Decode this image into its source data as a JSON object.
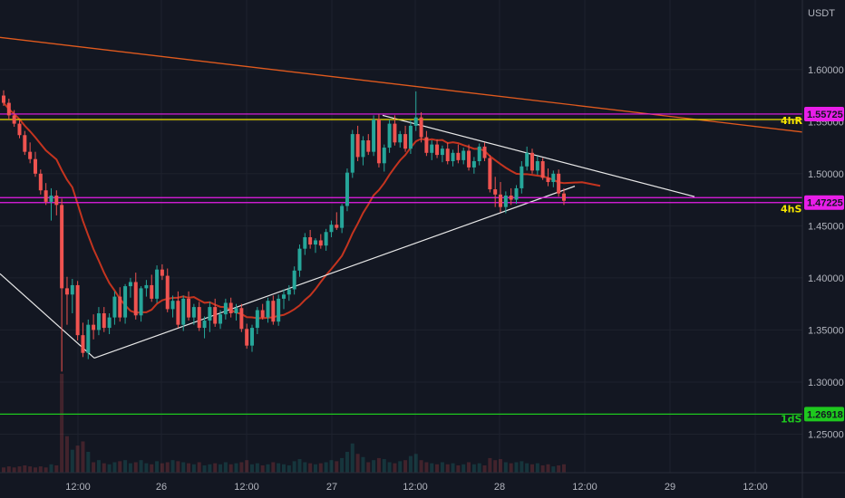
{
  "currency_label": "USDT",
  "colors": {
    "bg": "#131722",
    "grid": "#1e222d",
    "up": "#26a69a",
    "down": "#ef5350",
    "ma": "#c4341f",
    "trendline": "#e05a1e",
    "pattern": "#e8e8e8",
    "magenta": "#e91ee9",
    "yellow": "#f5e400",
    "green": "#1ec81e"
  },
  "chart_data": {
    "type": "candlestick",
    "ylim": [
      1.226,
      1.659
    ],
    "y_ticks": [
      "1.60000",
      "1.55000",
      "1.50000",
      "1.45000",
      "1.40000",
      "1.35000",
      "1.30000",
      "1.25000"
    ],
    "x_ticks": [
      "12:00",
      "26",
      "12:00",
      "27",
      "12:00",
      "28",
      "12:00",
      "29",
      "12:00"
    ],
    "price_levels": [
      {
        "label": "1.55725",
        "value": 1.55725,
        "color": "#e91ee9",
        "side_tag": "4hR"
      },
      {
        "label": "",
        "value": 1.552,
        "color": "#f5e400"
      },
      {
        "label": "1.47225",
        "value": 1.47225,
        "color": "#e91ee9",
        "side_tag": "4hS"
      },
      {
        "label": "",
        "value": 1.477,
        "color": "#e91ee9"
      },
      {
        "label": "1.26918",
        "value": 1.26918,
        "color": "#1ec81e",
        "side_tag": "1dS"
      }
    ],
    "candles": [
      [
        1.575,
        1.58,
        1.565,
        1.568
      ],
      [
        1.568,
        1.572,
        1.552,
        1.556
      ],
      [
        1.556,
        1.561,
        1.545,
        1.548
      ],
      [
        1.548,
        1.552,
        1.534,
        1.537
      ],
      [
        1.537,
        1.541,
        1.518,
        1.521
      ],
      [
        1.521,
        1.53,
        1.51,
        1.514
      ],
      [
        1.514,
        1.521,
        1.497,
        1.5
      ],
      [
        1.5,
        1.504,
        1.48,
        1.484
      ],
      [
        1.484,
        1.491,
        1.47,
        1.473
      ],
      [
        1.473,
        1.486,
        1.455,
        1.479
      ],
      [
        1.479,
        1.484,
        1.46,
        1.47
      ],
      [
        1.47,
        1.476,
        1.31,
        1.39
      ],
      [
        1.39,
        1.401,
        1.355,
        1.384
      ],
      [
        1.384,
        1.399,
        1.366,
        1.393
      ],
      [
        1.393,
        1.397,
        1.34,
        1.345
      ],
      [
        1.345,
        1.357,
        1.324,
        1.328
      ],
      [
        1.328,
        1.36,
        1.322,
        1.355
      ],
      [
        1.355,
        1.365,
        1.341,
        1.35
      ],
      [
        1.35,
        1.372,
        1.345,
        1.366
      ],
      [
        1.366,
        1.372,
        1.348,
        1.352
      ],
      [
        1.352,
        1.366,
        1.346,
        1.362
      ],
      [
        1.362,
        1.387,
        1.355,
        1.382
      ],
      [
        1.382,
        1.391,
        1.358,
        1.362
      ],
      [
        1.362,
        1.394,
        1.356,
        1.392
      ],
      [
        1.392,
        1.4,
        1.381,
        1.396
      ],
      [
        1.396,
        1.405,
        1.36,
        1.364
      ],
      [
        1.364,
        1.392,
        1.358,
        1.39
      ],
      [
        1.39,
        1.398,
        1.382,
        1.393
      ],
      [
        1.393,
        1.403,
        1.377,
        1.38
      ],
      [
        1.38,
        1.412,
        1.376,
        1.408
      ],
      [
        1.408,
        1.413,
        1.398,
        1.402
      ],
      [
        1.402,
        1.409,
        1.367,
        1.37
      ],
      [
        1.37,
        1.383,
        1.362,
        1.378
      ],
      [
        1.378,
        1.387,
        1.352,
        1.355
      ],
      [
        1.355,
        1.383,
        1.349,
        1.38
      ],
      [
        1.38,
        1.387,
        1.359,
        1.362
      ],
      [
        1.362,
        1.375,
        1.355,
        1.372
      ],
      [
        1.372,
        1.377,
        1.349,
        1.352
      ],
      [
        1.352,
        1.363,
        1.342,
        1.359
      ],
      [
        1.359,
        1.377,
        1.348,
        1.372
      ],
      [
        1.372,
        1.38,
        1.353,
        1.356
      ],
      [
        1.356,
        1.369,
        1.351,
        1.365
      ],
      [
        1.365,
        1.38,
        1.36,
        1.376
      ],
      [
        1.376,
        1.381,
        1.362,
        1.366
      ],
      [
        1.366,
        1.375,
        1.359,
        1.371
      ],
      [
        1.371,
        1.375,
        1.348,
        1.351
      ],
      [
        1.351,
        1.356,
        1.332,
        1.335
      ],
      [
        1.335,
        1.355,
        1.329,
        1.352
      ],
      [
        1.352,
        1.372,
        1.346,
        1.369
      ],
      [
        1.369,
        1.375,
        1.36,
        1.362
      ],
      [
        1.362,
        1.381,
        1.357,
        1.378
      ],
      [
        1.378,
        1.383,
        1.355,
        1.358
      ],
      [
        1.358,
        1.384,
        1.354,
        1.38
      ],
      [
        1.38,
        1.389,
        1.37,
        1.384
      ],
      [
        1.384,
        1.393,
        1.378,
        1.389
      ],
      [
        1.389,
        1.411,
        1.384,
        1.407
      ],
      [
        1.407,
        1.432,
        1.401,
        1.428
      ],
      [
        1.428,
        1.443,
        1.422,
        1.439
      ],
      [
        1.439,
        1.446,
        1.428,
        1.432
      ],
      [
        1.432,
        1.438,
        1.424,
        1.436
      ],
      [
        1.436,
        1.442,
        1.428,
        1.431
      ],
      [
        1.431,
        1.447,
        1.426,
        1.444
      ],
      [
        1.444,
        1.455,
        1.439,
        1.451
      ],
      [
        1.451,
        1.463,
        1.446,
        1.448
      ],
      [
        1.448,
        1.471,
        1.443,
        1.469
      ],
      [
        1.469,
        1.505,
        1.464,
        1.501
      ],
      [
        1.501,
        1.542,
        1.496,
        1.538
      ],
      [
        1.538,
        1.546,
        1.512,
        1.516
      ],
      [
        1.516,
        1.536,
        1.508,
        1.532
      ],
      [
        1.532,
        1.538,
        1.518,
        1.521
      ],
      [
        1.521,
        1.556,
        1.517,
        1.552
      ],
      [
        1.552,
        1.557,
        1.506,
        1.51
      ],
      [
        1.51,
        1.528,
        1.502,
        1.525
      ],
      [
        1.525,
        1.552,
        1.52,
        1.548
      ],
      [
        1.548,
        1.556,
        1.527,
        1.53
      ],
      [
        1.53,
        1.541,
        1.525,
        1.538
      ],
      [
        1.538,
        1.546,
        1.521,
        1.524
      ],
      [
        1.524,
        1.551,
        1.519,
        1.546
      ],
      [
        1.546,
        1.579,
        1.541,
        1.554
      ],
      [
        1.554,
        1.559,
        1.53,
        1.535
      ],
      [
        1.535,
        1.541,
        1.517,
        1.52
      ],
      [
        1.52,
        1.532,
        1.513,
        1.528
      ],
      [
        1.528,
        1.533,
        1.515,
        1.518
      ],
      [
        1.518,
        1.527,
        1.511,
        1.524
      ],
      [
        1.524,
        1.53,
        1.509,
        1.512
      ],
      [
        1.512,
        1.523,
        1.507,
        1.52
      ],
      [
        1.52,
        1.528,
        1.51,
        1.513
      ],
      [
        1.513,
        1.525,
        1.509,
        1.522
      ],
      [
        1.522,
        1.528,
        1.503,
        1.506
      ],
      [
        1.506,
        1.516,
        1.5,
        1.512
      ],
      [
        1.512,
        1.529,
        1.508,
        1.526
      ],
      [
        1.526,
        1.53,
        1.512,
        1.515
      ],
      [
        1.515,
        1.518,
        1.482,
        1.485
      ],
      [
        1.485,
        1.497,
        1.468,
        1.48
      ],
      [
        1.48,
        1.492,
        1.463,
        1.468
      ],
      [
        1.468,
        1.483,
        1.462,
        1.479
      ],
      [
        1.479,
        1.486,
        1.47,
        1.475
      ],
      [
        1.475,
        1.489,
        1.471,
        1.486
      ],
      [
        1.486,
        1.512,
        1.481,
        1.507
      ],
      [
        1.507,
        1.526,
        1.503,
        1.52
      ],
      [
        1.52,
        1.524,
        1.5,
        1.503
      ],
      [
        1.503,
        1.517,
        1.499,
        1.512
      ],
      [
        1.512,
        1.515,
        1.494,
        1.496
      ],
      [
        1.496,
        1.505,
        1.488,
        1.492
      ],
      [
        1.492,
        1.503,
        1.487,
        1.5
      ],
      [
        1.5,
        1.504,
        1.478,
        1.481
      ],
      [
        1.481,
        1.486,
        1.47,
        1.474
      ]
    ],
    "volume": [
      0.05,
      0.06,
      0.05,
      0.06,
      0.07,
      0.06,
      0.05,
      0.06,
      0.05,
      0.08,
      0.07,
      0.95,
      0.35,
      0.22,
      0.26,
      0.3,
      0.2,
      0.1,
      0.12,
      0.09,
      0.08,
      0.1,
      0.11,
      0.12,
      0.09,
      0.1,
      0.12,
      0.09,
      0.08,
      0.11,
      0.09,
      0.1,
      0.12,
      0.11,
      0.1,
      0.09,
      0.08,
      0.1,
      0.07,
      0.08,
      0.09,
      0.08,
      0.1,
      0.08,
      0.09,
      0.1,
      0.12,
      0.08,
      0.09,
      0.07,
      0.08,
      0.1,
      0.09,
      0.08,
      0.07,
      0.11,
      0.13,
      0.1,
      0.09,
      0.08,
      0.09,
      0.1,
      0.12,
      0.11,
      0.14,
      0.2,
      0.28,
      0.18,
      0.15,
      0.1,
      0.12,
      0.14,
      0.13,
      0.1,
      0.09,
      0.11,
      0.12,
      0.16,
      0.18,
      0.12,
      0.1,
      0.09,
      0.08,
      0.1,
      0.08,
      0.09,
      0.07,
      0.08,
      0.1,
      0.08,
      0.09,
      0.07,
      0.14,
      0.12,
      0.13,
      0.1,
      0.09,
      0.1,
      0.11,
      0.09,
      0.08,
      0.09,
      0.07,
      0.08,
      0.06,
      0.07,
      0.08
    ]
  }
}
